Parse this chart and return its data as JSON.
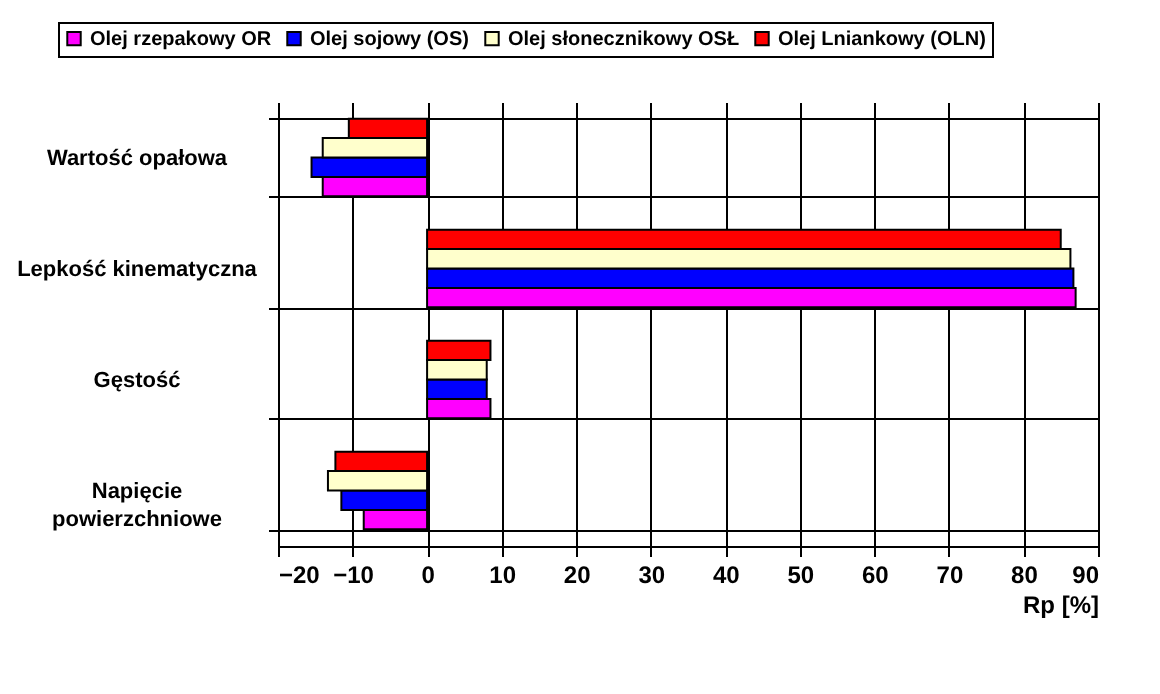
{
  "chart_data": {
    "type": "bar",
    "orientation": "horizontal",
    "xlabel": "Rp [%]",
    "categories": [
      "Wartość opałowa",
      "Lepkość kinematyczna",
      "Gęstość",
      "Napięcie powierzchniowe"
    ],
    "series": [
      {
        "name": "Olej rzepakowy OR",
        "color": "#ff00ff",
        "values": [
          -14,
          87,
          8.5,
          -8.5
        ]
      },
      {
        "name": "Olej sojowy (OS)",
        "color": "#0000ff",
        "values": [
          -15.5,
          86.7,
          8,
          -11.5
        ]
      },
      {
        "name": "Olej słonecznikowy OSŁ",
        "color": "#ffffcc",
        "values": [
          -14,
          86.3,
          8,
          -13.3
        ]
      },
      {
        "name": "Olej Lniankowy (OLN)",
        "color": "#ff0000",
        "values": [
          -10.5,
          85,
          8.5,
          -12.3
        ]
      }
    ],
    "xlim": [
      -20,
      90
    ],
    "xticks": [
      -20,
      -10,
      0,
      10,
      20,
      30,
      40,
      50,
      60,
      70,
      80,
      90
    ],
    "grid": true,
    "legend": "top"
  }
}
